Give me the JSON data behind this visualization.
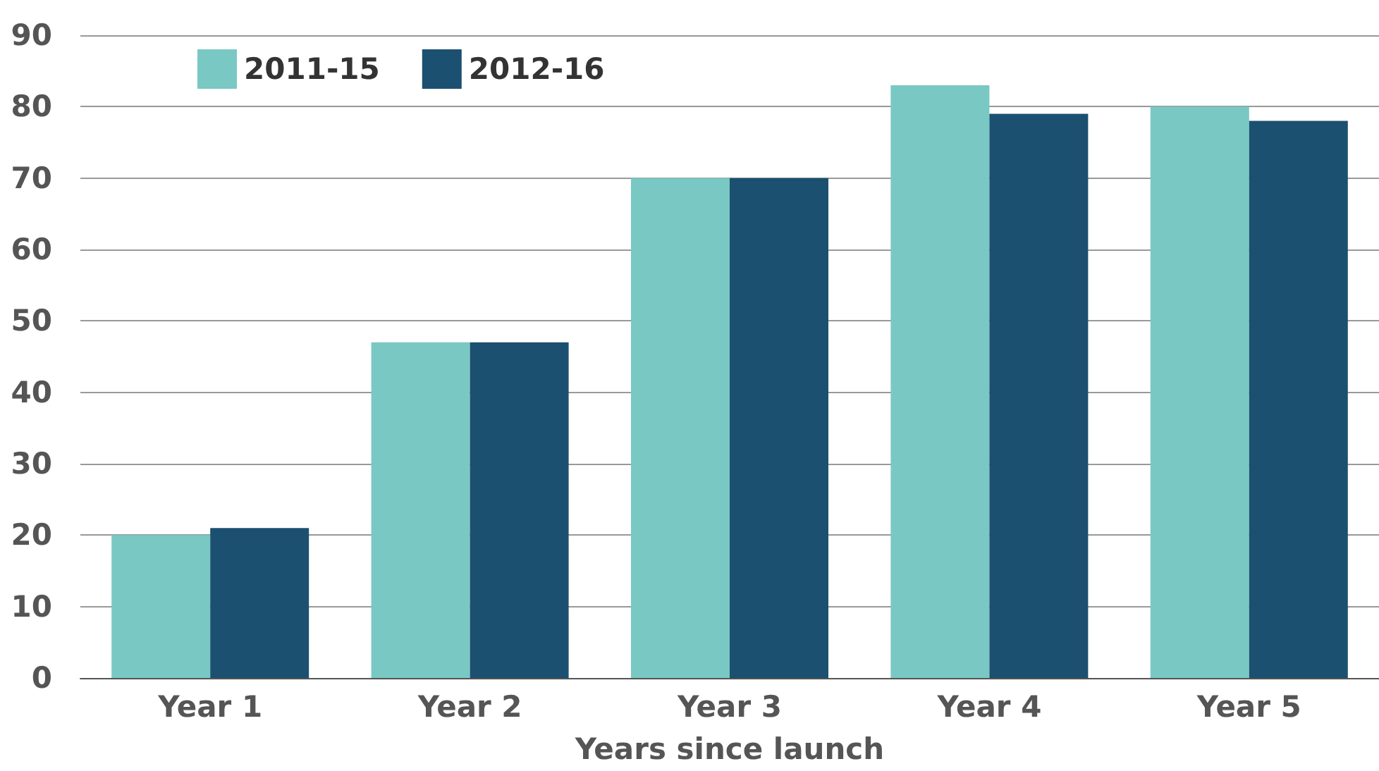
{
  "chart_data": {
    "type": "bar",
    "xlabel": "Years since launch",
    "categories": [
      "Year 1",
      "Year 2",
      "Year 3",
      "Year 4",
      "Year 5"
    ],
    "series": [
      {
        "name": "2011-15",
        "color": "#79c8c4",
        "values": [
          20,
          47,
          70,
          83,
          80
        ]
      },
      {
        "name": "2012-16",
        "color": "#1b5070",
        "values": [
          21,
          47,
          70,
          79,
          78
        ]
      }
    ],
    "ylim": [
      0,
      90
    ],
    "yticks": [
      0,
      10,
      20,
      30,
      40,
      50,
      60,
      70,
      80,
      90
    ],
    "grid": "y",
    "legend": "top left"
  }
}
